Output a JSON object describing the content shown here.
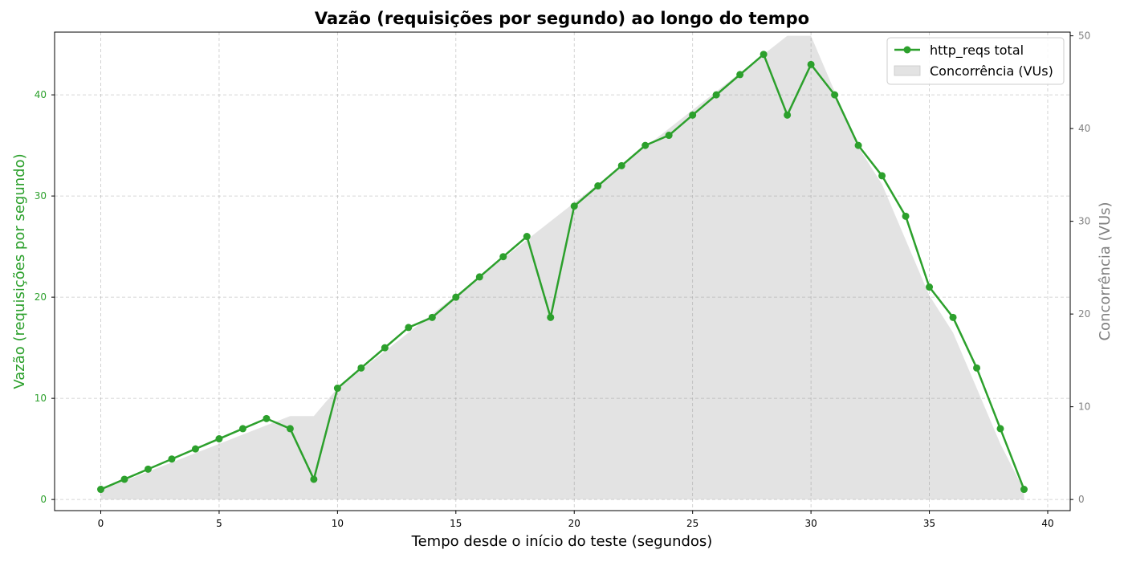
{
  "chart_data": {
    "type": "line",
    "title": "Vazão (requisições por segundo) ao longo do tempo",
    "xlabel": "Tempo desde o início do teste (segundos)",
    "ylabel": "Vazão (requisições por segundo)",
    "y2label": "Concorrência (VUs)",
    "xlim": [
      -1.95,
      40.95
    ],
    "ylim": [
      -1.1,
      46.2
    ],
    "y2lim": [
      -1.2,
      50.4
    ],
    "xticks": [
      0,
      5,
      10,
      15,
      20,
      25,
      30,
      35,
      40
    ],
    "yticks": [
      0,
      10,
      20,
      30,
      40
    ],
    "y2ticks": [
      0,
      10,
      20,
      30,
      40,
      50
    ],
    "grid": true,
    "legend_position": "top-right",
    "x": [
      0,
      1,
      2,
      3,
      4,
      5,
      6,
      7,
      8,
      9,
      10,
      11,
      12,
      13,
      14,
      15,
      16,
      17,
      18,
      19,
      20,
      21,
      22,
      23,
      24,
      25,
      26,
      27,
      28,
      29,
      30,
      31,
      32,
      33,
      34,
      35,
      36,
      37,
      38,
      39
    ],
    "series": [
      {
        "name": "http_reqs total",
        "axis": "left",
        "kind": "line",
        "color": "#2ca02c",
        "values": [
          1,
          2,
          3,
          4,
          5,
          6,
          7,
          8,
          7,
          2,
          11,
          13,
          15,
          17,
          18,
          20,
          22,
          24,
          26,
          18,
          29,
          31,
          33,
          35,
          36,
          38,
          40,
          42,
          44,
          38,
          43,
          40,
          35,
          32,
          28,
          21,
          18,
          13,
          7,
          1
        ]
      },
      {
        "name": "Concorrência (VUs)",
        "axis": "right",
        "kind": "area",
        "color": "#808080",
        "values": [
          1,
          2,
          3,
          4,
          5,
          6,
          7,
          8,
          9,
          9,
          12,
          14,
          16,
          18,
          20,
          22,
          24,
          26,
          28,
          30,
          32,
          34,
          36,
          38,
          40,
          42,
          44,
          46,
          48,
          50,
          50,
          44,
          38,
          34,
          28,
          22,
          18,
          12,
          6,
          1
        ]
      }
    ]
  }
}
